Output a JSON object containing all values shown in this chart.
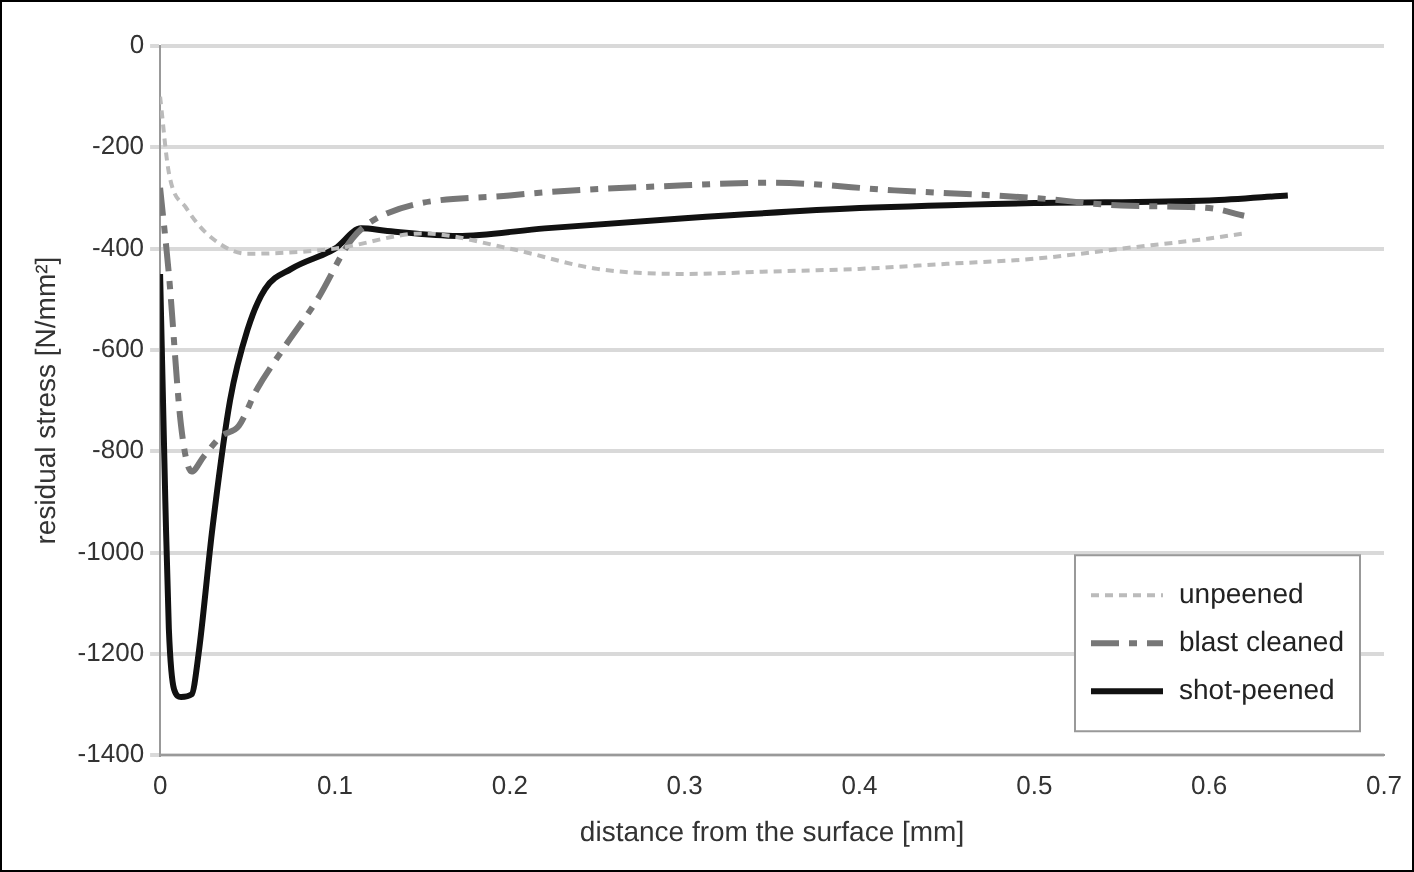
{
  "chart_data": {
    "type": "line",
    "xlabel": "distance from the surface [mm]",
    "ylabel": "residual stress [N/mm²]",
    "xlim": [
      0,
      0.7
    ],
    "xticks": [
      0,
      0.1,
      0.2,
      0.3,
      0.4,
      0.5,
      0.6,
      0.7
    ],
    "ylim": [
      -1400,
      0
    ],
    "yticks": [
      -1400,
      -1200,
      -1000,
      -800,
      -600,
      -400,
      -200,
      0
    ],
    "grid": "y",
    "legend": "bottom right",
    "marker": "none",
    "series": [
      {
        "name": "unpeened",
        "color": "#bbbbbb",
        "line_style": "dotted",
        "x": [
          0,
          0.005,
          0.015,
          0.03,
          0.05,
          0.1,
          0.15,
          0.2,
          0.25,
          0.3,
          0.35,
          0.4,
          0.45,
          0.5,
          0.55,
          0.6,
          0.62
        ],
        "values": [
          -100,
          -250,
          -320,
          -380,
          -410,
          -400,
          -370,
          -400,
          -440,
          -450,
          -445,
          -440,
          -430,
          -420,
          -400,
          -380,
          -370
        ]
      },
      {
        "name": "blast cleaned",
        "color": "#777777",
        "line_style": "dashed",
        "x": [
          0,
          0.005,
          0.012,
          0.018,
          0.025,
          0.035,
          0.045,
          0.055,
          0.07,
          0.09,
          0.11,
          0.13,
          0.2,
          0.3,
          0.35,
          0.42,
          0.5,
          0.55,
          0.6,
          0.62
        ],
        "values": [
          -280,
          -450,
          -750,
          -840,
          -810,
          -770,
          -750,
          -680,
          -600,
          -500,
          -380,
          -330,
          -295,
          -275,
          -270,
          -285,
          -300,
          -315,
          -320,
          -335
        ]
      },
      {
        "name": "shot-peened",
        "color": "#111111",
        "line_style": "solid",
        "x": [
          0,
          0.003,
          0.005,
          0.008,
          0.012,
          0.018,
          0.022,
          0.03,
          0.04,
          0.05,
          0.06,
          0.075,
          0.1,
          0.115,
          0.13,
          0.17,
          0.22,
          0.3,
          0.4,
          0.5,
          0.6,
          0.645
        ],
        "values": [
          -450,
          -900,
          -1150,
          -1270,
          -1285,
          -1280,
          -1200,
          -950,
          -700,
          -560,
          -480,
          -440,
          -400,
          -360,
          -365,
          -375,
          -360,
          -340,
          -320,
          -310,
          -305,
          -295
        ]
      }
    ]
  }
}
